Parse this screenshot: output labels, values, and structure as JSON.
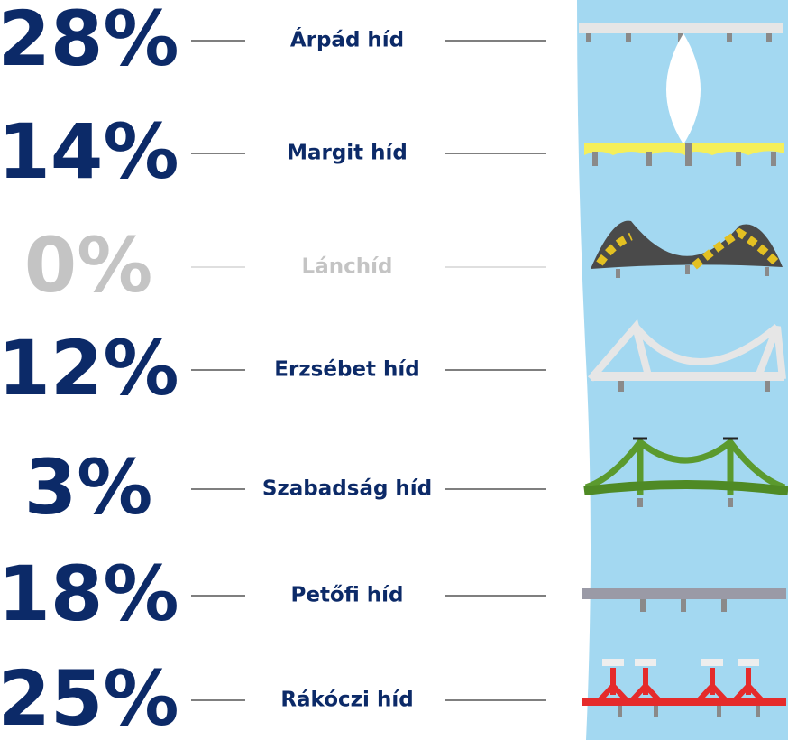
{
  "chart_data": {
    "type": "list",
    "categories": [
      "Árpád híd",
      "Margit híd",
      "Lánchíd",
      "Erzsébet híd",
      "Szabadság híd",
      "Petőfi híd",
      "Rákóczi híd"
    ],
    "values": [
      28,
      14,
      0,
      12,
      3,
      18,
      25
    ],
    "value_labels": [
      "28%",
      "14%",
      "0%",
      "12%",
      "3%",
      "18%",
      "25%"
    ],
    "color": "#0c2a68",
    "muted_color": "#c4c4c4"
  }
}
